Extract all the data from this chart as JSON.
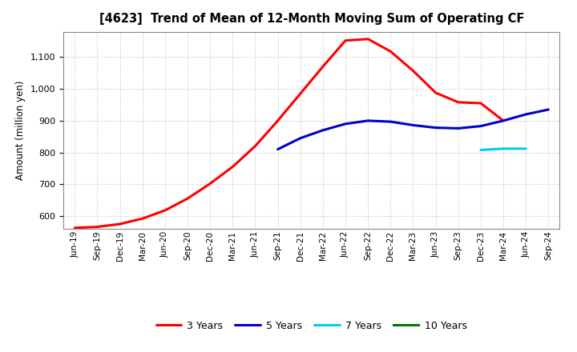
{
  "title": "[4623]  Trend of Mean of 12-Month Moving Sum of Operating CF",
  "ylabel": "Amount (million yen)",
  "background_color": "#ffffff",
  "grid_color": "#b0b0b0",
  "ylim": [
    560,
    1180
  ],
  "yticks": [
    600,
    700,
    800,
    900,
    1000,
    1100
  ],
  "x_labels": [
    "Jun-19",
    "Sep-19",
    "Dec-19",
    "Mar-20",
    "Jun-20",
    "Sep-20",
    "Dec-20",
    "Mar-21",
    "Jun-21",
    "Sep-21",
    "Dec-21",
    "Mar-22",
    "Jun-22",
    "Sep-22",
    "Dec-22",
    "Mar-23",
    "Jun-23",
    "Sep-23",
    "Dec-23",
    "Mar-24",
    "Jun-24",
    "Sep-24"
  ],
  "series_3yr": {
    "color": "#ff0000",
    "values": [
      563,
      566,
      575,
      592,
      618,
      655,
      702,
      755,
      820,
      900,
      985,
      1070,
      1152,
      1157,
      1118,
      1057,
      988,
      958,
      955,
      900,
      null,
      null
    ]
  },
  "series_5yr": {
    "color": "#0000cc",
    "values": [
      null,
      null,
      null,
      null,
      null,
      null,
      null,
      null,
      null,
      810,
      845,
      870,
      890,
      900,
      897,
      886,
      878,
      876,
      883,
      900,
      920,
      935
    ]
  },
  "series_7yr": {
    "color": "#00ccee",
    "values": [
      null,
      null,
      null,
      null,
      null,
      null,
      null,
      null,
      null,
      null,
      null,
      null,
      null,
      null,
      null,
      null,
      null,
      null,
      808,
      812,
      812,
      null
    ]
  },
  "series_10yr": {
    "color": "#007700",
    "values": [
      null,
      null,
      null,
      null,
      null,
      null,
      null,
      null,
      null,
      null,
      null,
      null,
      null,
      null,
      null,
      null,
      null,
      null,
      null,
      null,
      null,
      null
    ]
  },
  "legend_labels": [
    "3 Years",
    "5 Years",
    "7 Years",
    "10 Years"
  ],
  "legend_colors": [
    "#ff0000",
    "#0000cc",
    "#00ccee",
    "#007700"
  ]
}
